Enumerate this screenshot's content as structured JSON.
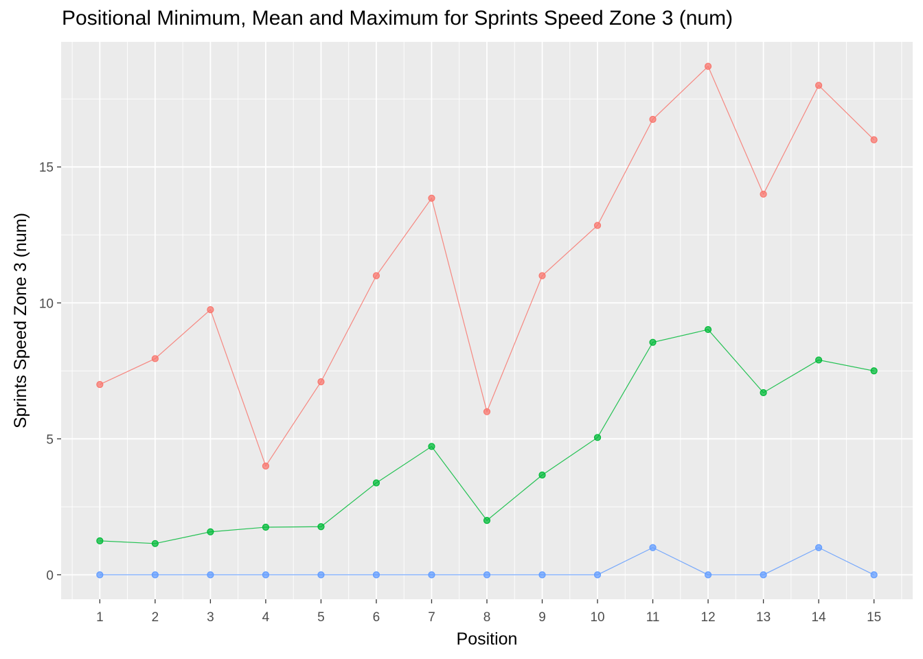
{
  "chart_data": {
    "type": "line",
    "title": "Positional Minimum, Mean and Maximum for Sprints Speed Zone 3 (num)",
    "xlabel": "Position",
    "ylabel": "Sprints Speed Zone 3 (num)",
    "x": [
      1,
      2,
      3,
      4,
      5,
      6,
      7,
      8,
      9,
      10,
      11,
      12,
      13,
      14,
      15
    ],
    "xlim": [
      0.3,
      15.7
    ],
    "ylim": [
      -0.9,
      19.6
    ],
    "yticks": [
      0,
      5,
      10,
      15
    ],
    "grid": true,
    "legend": "none",
    "series": [
      {
        "color": "#f8766d",
        "values": [
          7,
          7.95,
          9.75,
          4,
          7.1,
          11,
          13.85,
          6,
          11,
          12.85,
          16.75,
          18.7,
          14,
          18,
          16
        ]
      },
      {
        "color": "#00ba38",
        "values": [
          1.25,
          1.15,
          1.58,
          1.75,
          1.77,
          3.38,
          4.72,
          2,
          3.67,
          5.05,
          8.55,
          9.02,
          6.7,
          7.9,
          7.5
        ]
      },
      {
        "color": "#619cff",
        "values": [
          0,
          0,
          0,
          0,
          0,
          0,
          0,
          0,
          0,
          0,
          1,
          0,
          0,
          1,
          0
        ]
      }
    ]
  }
}
